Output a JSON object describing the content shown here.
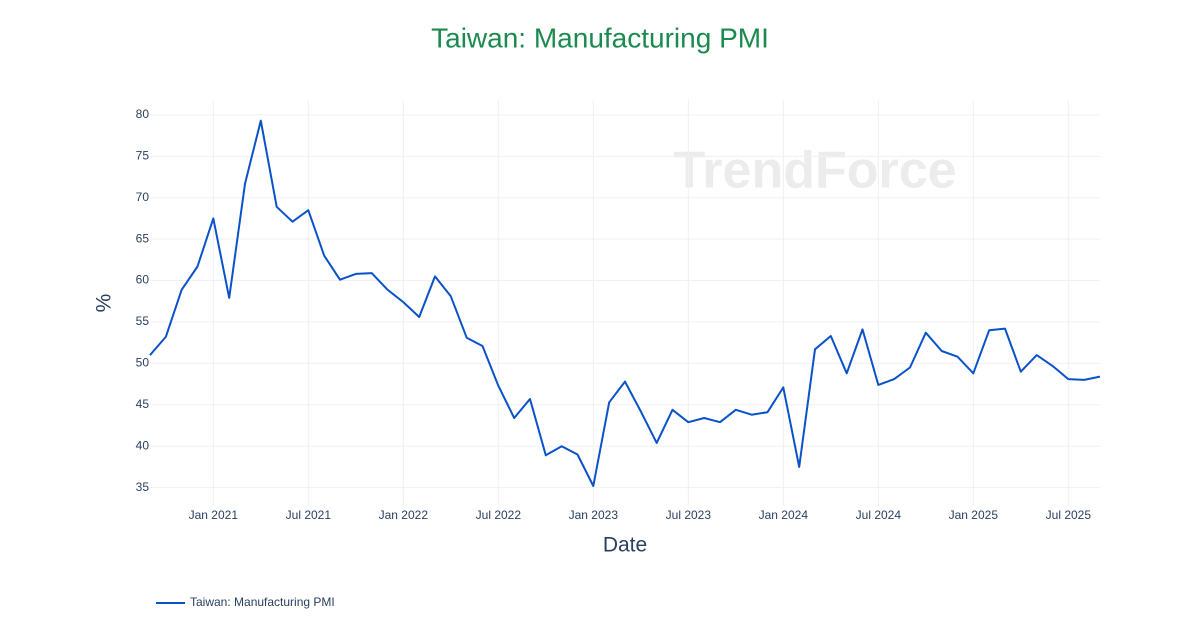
{
  "chart_data": {
    "type": "line",
    "title": "Taiwan: Manufacturing PMI",
    "x_label": "Date",
    "y_label": "%",
    "watermark": "TrendForce",
    "x": [
      "2020-09",
      "2020-10",
      "2020-11",
      "2020-12",
      "2021-01",
      "2021-02",
      "2021-03",
      "2021-04",
      "2021-05",
      "2021-06",
      "2021-07",
      "2021-08",
      "2021-09",
      "2021-10",
      "2021-11",
      "2021-12",
      "2022-01",
      "2022-02",
      "2022-03",
      "2022-04",
      "2022-05",
      "2022-06",
      "2022-07",
      "2022-08",
      "2022-09",
      "2022-10",
      "2022-11",
      "2022-12",
      "2023-01",
      "2023-02",
      "2023-03",
      "2023-04",
      "2023-05",
      "2023-06",
      "2023-07",
      "2023-08",
      "2023-09",
      "2023-10",
      "2023-11",
      "2023-12",
      "2024-01",
      "2024-02",
      "2024-03",
      "2024-04",
      "2024-05",
      "2024-06",
      "2024-07",
      "2024-08",
      "2024-09",
      "2024-10",
      "2024-11",
      "2024-12",
      "2025-01",
      "2025-02",
      "2025-03",
      "2025-04",
      "2025-05",
      "2025-06",
      "2025-07",
      "2025-08",
      "2025-09"
    ],
    "series": [
      {
        "name": "Taiwan: Manufacturing PMI",
        "color": "#0a52c8",
        "values": [
          51.0,
          53.2,
          58.9,
          61.7,
          67.5,
          57.9,
          71.7,
          79.3,
          68.9,
          67.1,
          68.5,
          63.0,
          60.1,
          60.8,
          60.9,
          58.9,
          57.4,
          55.6,
          60.5,
          58.1,
          53.1,
          52.1,
          47.3,
          43.4,
          45.7,
          38.9,
          40.0,
          39.0,
          35.2,
          45.3,
          47.8,
          44.2,
          40.4,
          44.4,
          42.9,
          43.4,
          42.9,
          44.4,
          43.8,
          44.1,
          47.1,
          37.5,
          51.7,
          53.3,
          48.8,
          54.1,
          47.4,
          48.1,
          49.5,
          53.7,
          51.5,
          50.8,
          48.8,
          54.0,
          54.2,
          49.0,
          51.0,
          49.7,
          48.1,
          48.0,
          48.4
        ]
      }
    ],
    "xlim": [
      "2020-09",
      "2025-09"
    ],
    "xticks": [
      {
        "value": "2021-01",
        "label": "Jan 2021"
      },
      {
        "value": "2021-07",
        "label": "Jul 2021"
      },
      {
        "value": "2022-01",
        "label": "Jan 2022"
      },
      {
        "value": "2022-07",
        "label": "Jul 2022"
      },
      {
        "value": "2023-01",
        "label": "Jan 2023"
      },
      {
        "value": "2023-07",
        "label": "Jul 2023"
      },
      {
        "value": "2024-01",
        "label": "Jan 2024"
      },
      {
        "value": "2024-07",
        "label": "Jul 2024"
      },
      {
        "value": "2025-01",
        "label": "Jan 2025"
      },
      {
        "value": "2025-07",
        "label": "Jul 2025"
      }
    ],
    "ylim": [
      32.9,
      81.8
    ],
    "yticks": [
      35,
      40,
      45,
      50,
      55,
      60,
      65,
      70,
      75,
      80
    ],
    "grid": true,
    "legend": "bottom-left"
  }
}
